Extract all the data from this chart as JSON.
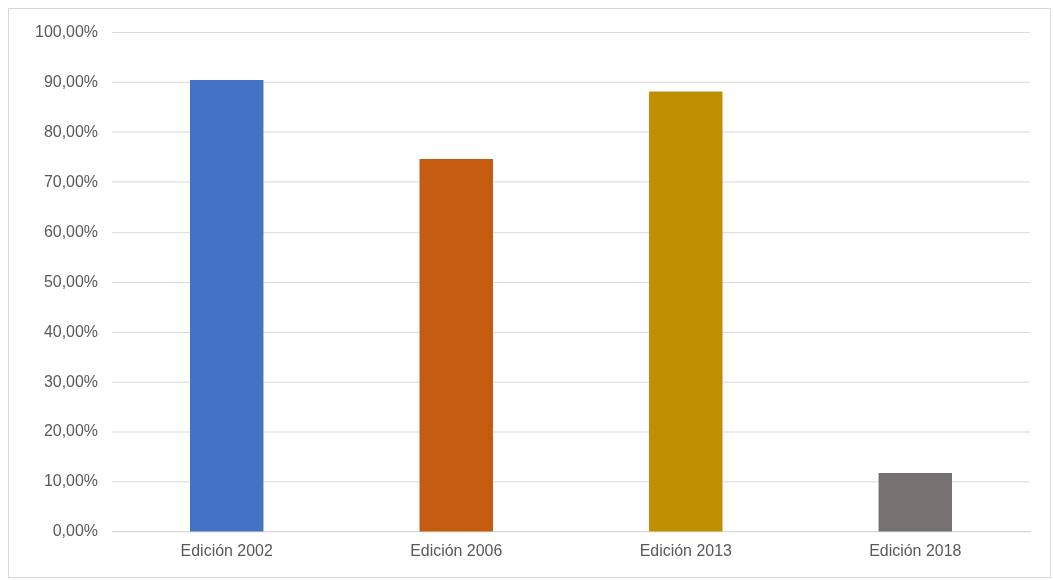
{
  "chart_data": {
    "type": "bar",
    "categories": [
      "Edición 2002",
      "Edición 2006",
      "Edición 2013",
      "Edición 2018"
    ],
    "values": [
      90.5,
      74.7,
      88.2,
      11.8
    ],
    "colors": [
      "#4472c4",
      "#c55a11",
      "#bf8f00",
      "#767171"
    ],
    "ylim": [
      0,
      100
    ],
    "yticks": [
      {
        "value": 0,
        "label": "0,00%"
      },
      {
        "value": 10,
        "label": "10,00%"
      },
      {
        "value": 20,
        "label": "20,00%"
      },
      {
        "value": 30,
        "label": "30,00%"
      },
      {
        "value": 40,
        "label": "40,00%"
      },
      {
        "value": 50,
        "label": "50,00%"
      },
      {
        "value": 60,
        "label": "60,00%"
      },
      {
        "value": 70,
        "label": "70,00%"
      },
      {
        "value": 80,
        "label": "80,00%"
      },
      {
        "value": 90,
        "label": "90,00%"
      },
      {
        "value": 100,
        "label": "100,00%"
      }
    ],
    "grid": "y",
    "legend": false
  }
}
